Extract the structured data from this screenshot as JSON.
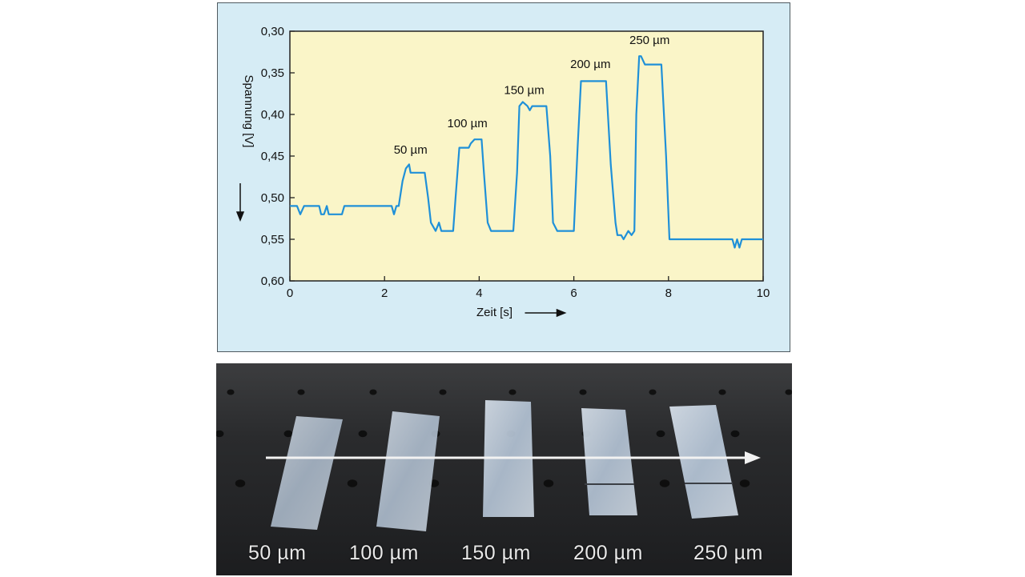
{
  "chart_data": {
    "type": "line",
    "xlabel": "Zeit [s]",
    "ylabel": "Spannung [V]",
    "xlim": [
      0,
      10
    ],
    "ylim": [
      0.6,
      0.3
    ],
    "y_inverted": true,
    "x_ticks": [
      "0",
      "2",
      "4",
      "6",
      "8",
      "10"
    ],
    "y_ticks": [
      "0,30",
      "0,35",
      "0,40",
      "0,45",
      "0,50",
      "0,55",
      "0,60"
    ],
    "grid": false,
    "annotations": [
      {
        "text": "50 µm",
        "x": 2.55,
        "y": 0.455
      },
      {
        "text": "100 µm",
        "x": 3.75,
        "y": 0.423
      },
      {
        "text": "150 µm",
        "x": 4.95,
        "y": 0.383
      },
      {
        "text": "200 µm",
        "x": 6.35,
        "y": 0.352
      },
      {
        "text": "250 µm",
        "x": 7.6,
        "y": 0.323
      }
    ],
    "series": [
      {
        "color": "#1f90d8",
        "x": [
          0,
          0.15,
          0.22,
          0.3,
          0.38,
          0.62,
          0.66,
          0.72,
          0.78,
          0.82,
          0.86,
          0.9,
          1.1,
          1.15,
          2.15,
          2.2,
          2.25,
          2.3,
          2.38,
          2.45,
          2.52,
          2.55,
          2.85,
          2.92,
          2.98,
          3.08,
          3.15,
          3.2,
          3.25,
          3.3,
          3.35,
          3.45,
          3.5,
          3.58,
          3.78,
          3.82,
          3.9,
          4.05,
          4.1,
          4.18,
          4.25,
          4.32,
          4.35,
          4.72,
          4.8,
          4.85,
          4.92,
          5.02,
          5.07,
          5.12,
          5.35,
          5.42,
          5.5,
          5.56,
          5.65,
          5.7,
          5.95,
          6.0,
          6.08,
          6.15,
          6.62,
          6.68,
          6.78,
          6.88,
          6.92,
          7.0,
          7.05,
          7.15,
          7.22,
          7.28,
          7.32,
          7.38,
          7.42,
          7.5,
          7.85,
          7.95,
          8.02,
          8.1,
          9.35,
          9.4,
          9.45,
          9.5,
          9.55,
          9.6,
          9.65,
          10
        ],
        "y": [
          0.51,
          0.51,
          0.52,
          0.51,
          0.51,
          0.51,
          0.52,
          0.52,
          0.51,
          0.52,
          0.52,
          0.52,
          0.52,
          0.51,
          0.51,
          0.52,
          0.51,
          0.51,
          0.48,
          0.465,
          0.46,
          0.47,
          0.47,
          0.5,
          0.53,
          0.54,
          0.53,
          0.54,
          0.54,
          0.54,
          0.54,
          0.54,
          0.5,
          0.44,
          0.44,
          0.435,
          0.43,
          0.43,
          0.47,
          0.53,
          0.54,
          0.54,
          0.54,
          0.54,
          0.47,
          0.39,
          0.385,
          0.39,
          0.395,
          0.39,
          0.39,
          0.39,
          0.45,
          0.53,
          0.54,
          0.54,
          0.54,
          0.54,
          0.44,
          0.36,
          0.36,
          0.36,
          0.46,
          0.53,
          0.545,
          0.545,
          0.55,
          0.54,
          0.545,
          0.54,
          0.4,
          0.33,
          0.33,
          0.34,
          0.34,
          0.45,
          0.55,
          0.55,
          0.55,
          0.56,
          0.55,
          0.56,
          0.55,
          0.55,
          0.55,
          0.55
        ]
      }
    ]
  },
  "photo": {
    "labels": [
      "50 µm",
      "100 µm",
      "150 µm",
      "200 µm",
      "250 µm"
    ]
  }
}
